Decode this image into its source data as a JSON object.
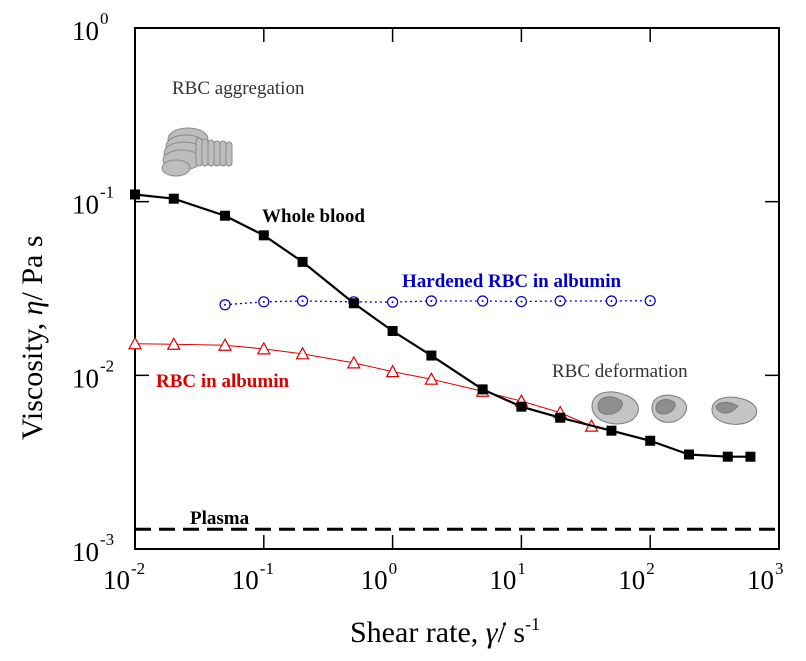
{
  "chart_data": {
    "type": "line",
    "x_scale": "log",
    "y_scale": "log",
    "xlim": [
      0.01,
      1000
    ],
    "ylim": [
      0.001,
      1
    ],
    "x_ticks": [
      {
        "value": 0.01,
        "base": "10",
        "exp": "-2"
      },
      {
        "value": 0.1,
        "base": "10",
        "exp": "-1"
      },
      {
        "value": 1,
        "base": "10",
        "exp": "0"
      },
      {
        "value": 10,
        "base": "10",
        "exp": "1"
      },
      {
        "value": 100,
        "base": "10",
        "exp": "2"
      },
      {
        "value": 1000,
        "base": "10",
        "exp": "3"
      }
    ],
    "y_ticks": [
      {
        "value": 0.001,
        "base": "10",
        "exp": "-3"
      },
      {
        "value": 0.01,
        "base": "10",
        "exp": "-2"
      },
      {
        "value": 0.1,
        "base": "10",
        "exp": "-1"
      },
      {
        "value": 1,
        "base": "10",
        "exp": "0"
      }
    ],
    "xlabel": {
      "text": "Shear rate, ",
      "symbol": "γ̇",
      "unit": "/ s",
      "unit_exp": "-1"
    },
    "ylabel": {
      "text": "Viscosity, ",
      "symbol": "η",
      "unit": "/ Pa s"
    },
    "series": [
      {
        "name": "Whole blood",
        "color": "#000000",
        "marker": "filled-square",
        "line": "solid",
        "x": [
          0.01,
          0.02,
          0.05,
          0.1,
          0.2,
          0.5,
          1,
          2,
          5,
          10,
          20,
          50,
          100,
          200,
          400,
          600
        ],
        "y": [
          0.11,
          0.104,
          0.083,
          0.064,
          0.045,
          0.026,
          0.018,
          0.013,
          0.0083,
          0.0066,
          0.0057,
          0.0048,
          0.0042,
          0.0035,
          0.0034,
          0.0034
        ]
      },
      {
        "name": "Hardened RBC in albumin",
        "color": "#0000cc",
        "marker": "open-circle-dot",
        "line": "dotted",
        "x": [
          0.05,
          0.1,
          0.2,
          0.5,
          1,
          2,
          5,
          10,
          20,
          50,
          100
        ],
        "y": [
          0.0255,
          0.0265,
          0.0268,
          0.0265,
          0.0264,
          0.0268,
          0.0268,
          0.0266,
          0.0268,
          0.0268,
          0.0269
        ]
      },
      {
        "name": "RBC in albumin",
        "color": "#dd0000",
        "marker": "open-triangle",
        "line": "solid",
        "x": [
          0.01,
          0.02,
          0.05,
          0.1,
          0.2,
          0.5,
          1,
          2,
          5,
          10,
          20,
          35
        ],
        "y": [
          0.0152,
          0.0151,
          0.0149,
          0.0142,
          0.0133,
          0.0118,
          0.0105,
          0.0095,
          0.0081,
          0.0071,
          0.0061,
          0.0051
        ]
      }
    ],
    "reference_line": {
      "name": "Plasma",
      "y": 0.0013,
      "color": "#000000",
      "line": "dashed"
    },
    "annotations": {
      "aggregation": "RBC aggregation",
      "deformation": "RBC deformation"
    }
  }
}
